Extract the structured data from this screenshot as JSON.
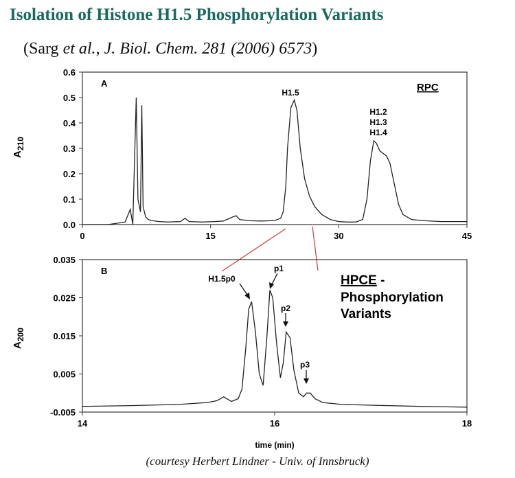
{
  "title": "Isolation of Histone H1.5 Phosphorylation Variants",
  "citation": {
    "open": "(Sarg ",
    "etal": "et al.",
    "sep": ", ",
    "journal": "J. Biol. Chem. 281 (2006) 6573",
    "close": ")"
  },
  "courtesy": "(courtesy Herbert Lindner - Univ. of Innsbruck)",
  "chart_data": [
    {
      "type": "line",
      "panel": "A",
      "method": "RPC",
      "ylabel_main": "A",
      "ylabel_sub": "210",
      "xlabel": "",
      "xlim": [
        0,
        45
      ],
      "ylim": [
        0.0,
        0.6
      ],
      "x_ticks": [
        "0",
        "15",
        "30",
        "45"
      ],
      "y_ticks": [
        "0.6",
        "0.5",
        "0.4",
        "0.3",
        "0.2",
        "0.1",
        "0.0"
      ],
      "peak_labels": [
        "H1.5",
        "H1.2",
        "H1.3",
        "H1.4"
      ],
      "series": [
        {
          "x": [
            0,
            3,
            5,
            5.6,
            5.9,
            6.1,
            6.3,
            6.5,
            6.8,
            6.95,
            7.1,
            7.4,
            7.7,
            8.2,
            9,
            10,
            11.5,
            12,
            12.5,
            14,
            15.5,
            16.5,
            17.6,
            18,
            18.4,
            19.5,
            21,
            22.5,
            23.2,
            23.5,
            23.8,
            24,
            24.4,
            24.8,
            25.1,
            25.5,
            26,
            26.6,
            27.2,
            28,
            29,
            30,
            31,
            32,
            32.8,
            33.3,
            33.7,
            34.1,
            34.4,
            34.8,
            35.2,
            35.6,
            36,
            36.5,
            37,
            37.5,
            38.5,
            40,
            42,
            45
          ],
          "y": [
            0.0,
            0.0,
            0.01,
            0.06,
            0.0,
            0.25,
            0.5,
            0.1,
            0.05,
            0.47,
            0.07,
            0.03,
            0.02,
            0.015,
            0.012,
            0.01,
            0.012,
            0.025,
            0.012,
            0.01,
            0.012,
            0.014,
            0.03,
            0.035,
            0.02,
            0.015,
            0.014,
            0.016,
            0.025,
            0.05,
            0.15,
            0.3,
            0.46,
            0.49,
            0.45,
            0.3,
            0.18,
            0.11,
            0.07,
            0.04,
            0.02,
            0.012,
            0.01,
            0.01,
            0.02,
            0.1,
            0.25,
            0.33,
            0.32,
            0.29,
            0.28,
            0.27,
            0.24,
            0.16,
            0.08,
            0.04,
            0.02,
            0.015,
            0.012,
            0.012
          ]
        }
      ]
    },
    {
      "type": "line",
      "panel": "B",
      "method_line1": "HPCE",
      "method_dash": " -",
      "method_line2": "Phosphorylation",
      "method_line3": "Variants",
      "ylabel_main": "A",
      "ylabel_sub": "200",
      "xlabel": "time (min)",
      "xlim": [
        14,
        18
      ],
      "ylim": [
        -0.005,
        0.035
      ],
      "x_ticks": [
        "14",
        "16",
        "18"
      ],
      "y_ticks": [
        "0.035",
        "0.025",
        "0.015",
        "0.005",
        "-0.005"
      ],
      "peak_labels": [
        "H1.5p0",
        "p1",
        "p2",
        "p3"
      ],
      "series": [
        {
          "x": [
            14,
            14.5,
            15,
            15.3,
            15.4,
            15.47,
            15.55,
            15.62,
            15.66,
            15.7,
            15.73,
            15.76,
            15.8,
            15.84,
            15.88,
            15.92,
            15.95,
            15.98,
            16.02,
            16.06,
            16.09,
            16.12,
            16.16,
            16.2,
            16.25,
            16.3,
            16.33,
            16.37,
            16.42,
            16.5,
            16.7,
            17,
            17.5,
            18
          ],
          "y": [
            -0.0035,
            -0.0033,
            -0.003,
            -0.0025,
            -0.002,
            -0.001,
            -0.0022,
            -0.0015,
            0.001,
            0.012,
            0.022,
            0.024,
            0.016,
            0.005,
            0.002,
            0.015,
            0.027,
            0.025,
            0.013,
            0.004,
            0.008,
            0.016,
            0.0145,
            0.006,
            0.0,
            -0.001,
            0.0,
            0.0,
            -0.0015,
            -0.0025,
            -0.003,
            -0.0032,
            -0.0035,
            -0.0037
          ]
        }
      ]
    }
  ]
}
